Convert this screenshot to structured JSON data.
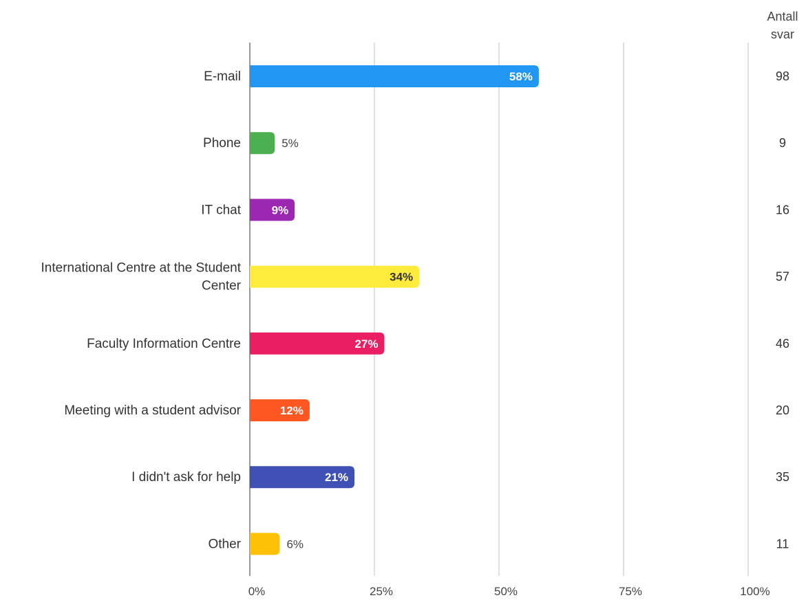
{
  "chart_data": {
    "type": "bar",
    "orientation": "horizontal",
    "categories": [
      "E-mail",
      "Phone",
      "IT chat",
      "International Centre at the Student Center",
      "Faculty Information Centre",
      "Meeting with a student advisor",
      "I didn't ask for help",
      "Other"
    ],
    "category_label_lines": [
      [
        "E-mail"
      ],
      [
        "Phone"
      ],
      [
        "IT chat"
      ],
      [
        "International Centre at the Student",
        "Center"
      ],
      [
        "Faculty Information Centre"
      ],
      [
        "Meeting with a student advisor"
      ],
      [
        "I didn't ask for help"
      ],
      [
        "Other"
      ]
    ],
    "values": [
      58,
      5,
      9,
      34,
      27,
      12,
      21,
      6
    ],
    "data_labels": [
      "58%",
      "5%",
      "9%",
      "34%",
      "27%",
      "12%",
      "21%",
      "6%"
    ],
    "colors": [
      "#2196f3",
      "#4caf50",
      "#9c27b0",
      "#ffeb3b",
      "#e91e63",
      "#ff5722",
      "#3f51b5",
      "#ffc107"
    ],
    "label_colors": [
      "#ffffff",
      "#444444",
      "#ffffff",
      "#333333",
      "#ffffff",
      "#ffffff",
      "#ffffff",
      "#333333"
    ],
    "counts_header": [
      "Antall",
      "svar"
    ],
    "counts": [
      98,
      9,
      16,
      57,
      46,
      20,
      35,
      11
    ],
    "xlim": [
      0,
      100
    ],
    "x_ticks": [
      0,
      25,
      50,
      75,
      100
    ],
    "x_tick_labels": [
      "0%",
      "25%",
      "50%",
      "75%",
      "100%"
    ],
    "grid": true,
    "title": "",
    "xlabel": "",
    "ylabel": ""
  }
}
